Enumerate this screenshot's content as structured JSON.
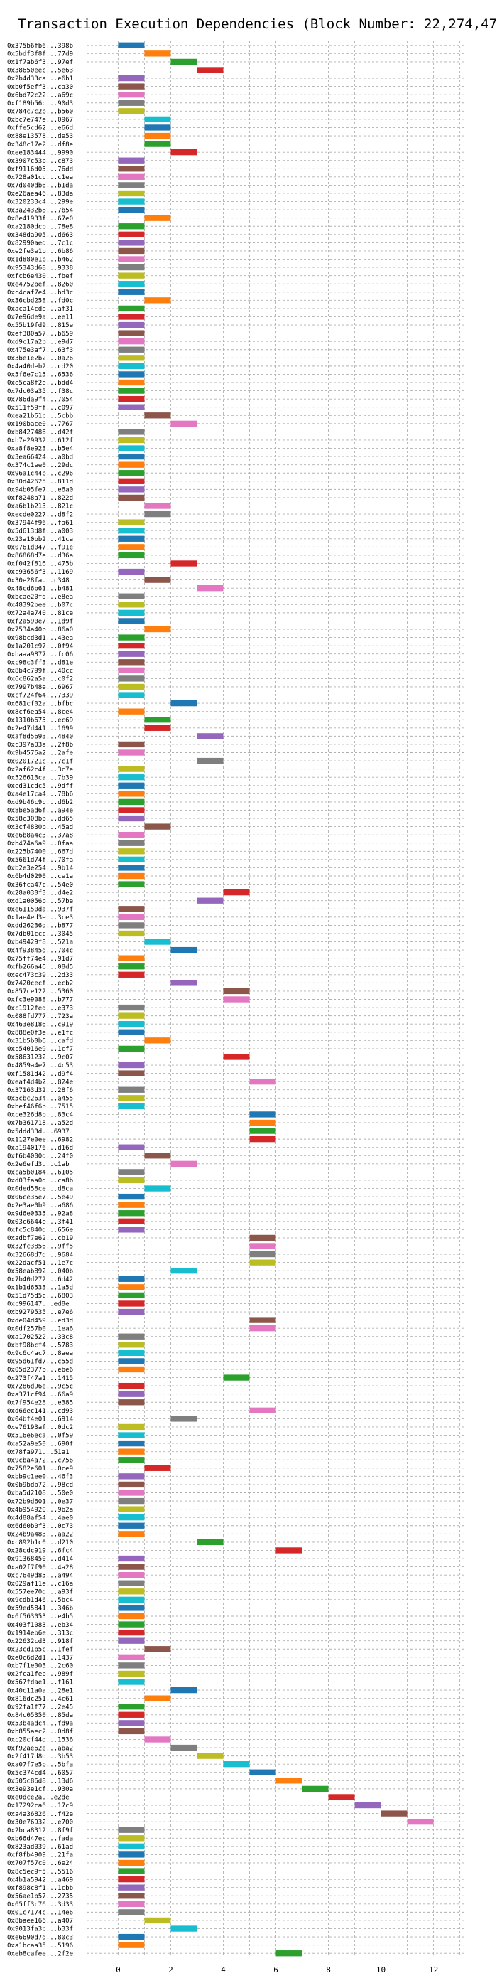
{
  "chart_data": {
    "type": "bar",
    "title": "Transaction Execution Dependencies (Block Number: 22,274,472)",
    "xlabel": "",
    "ylabel": "",
    "xlim": [
      -1.2,
      13.2
    ],
    "xticks": [
      0,
      2,
      4,
      6,
      8,
      10,
      12
    ],
    "grid": true,
    "colors": [
      "#1f77b4",
      "#ff7f0e",
      "#2ca02c",
      "#d62728",
      "#9467bd",
      "#8c564b",
      "#e377c2",
      "#7f7f7f",
      "#bcbd22",
      "#17becf"
    ],
    "transactions": [
      {
        "hash": "0x375b6fb6...398b",
        "start": 0
      },
      {
        "hash": "0x5bdf3f8f...77d9",
        "start": 1
      },
      {
        "hash": "0x1f7ab6f3...97ef",
        "start": 2
      },
      {
        "hash": "0x38650eec...5e63",
        "start": 3
      },
      {
        "hash": "0x2b4d33ca...e6b1",
        "start": 0
      },
      {
        "hash": "0xb0f5eff3...ca30",
        "start": 0
      },
      {
        "hash": "0x6bd72c22...a69c",
        "start": 0
      },
      {
        "hash": "0xf189b56c...90d3",
        "start": 0
      },
      {
        "hash": "0x784c7c2b...b560",
        "start": 0
      },
      {
        "hash": "0xbc7e747e...0967",
        "start": 1
      },
      {
        "hash": "0xffe5cd62...e66d",
        "start": 1
      },
      {
        "hash": "0x88e13578...de53",
        "start": 1
      },
      {
        "hash": "0x348c17e2...df8e",
        "start": 1
      },
      {
        "hash": "0xee183444...9990",
        "start": 2
      },
      {
        "hash": "0x3907c53b...c873",
        "start": 0
      },
      {
        "hash": "0xf9116d05...76dd",
        "start": 0
      },
      {
        "hash": "0x728a01cc...c1ea",
        "start": 0
      },
      {
        "hash": "0x7d040db6...b1da",
        "start": 0
      },
      {
        "hash": "0xe26aea46...83da",
        "start": 0
      },
      {
        "hash": "0x320233c4...299e",
        "start": 0
      },
      {
        "hash": "0x3a2432b8...7b54",
        "start": 0
      },
      {
        "hash": "0x8e41933f...67e0",
        "start": 1
      },
      {
        "hash": "0xa2180dcb...78e8",
        "start": 0
      },
      {
        "hash": "0x348da905...d663",
        "start": 0
      },
      {
        "hash": "0x82990aed...7c1c",
        "start": 0
      },
      {
        "hash": "0xe2fe3e1b...6b86",
        "start": 0
      },
      {
        "hash": "0x1d880e1b...b462",
        "start": 0
      },
      {
        "hash": "0x95343d68...9338",
        "start": 0
      },
      {
        "hash": "0xfcb6e430...fbef",
        "start": 0
      },
      {
        "hash": "0xe4752bef...8260",
        "start": 0
      },
      {
        "hash": "0xc4caf7e4...bd3c",
        "start": 0
      },
      {
        "hash": "0x36cbd258...fd0c",
        "start": 1
      },
      {
        "hash": "0xaca14cde...af31",
        "start": 0
      },
      {
        "hash": "0x7e96de9a...ee11",
        "start": 0
      },
      {
        "hash": "0x55b19fd9...815e",
        "start": 0
      },
      {
        "hash": "0xef380a57...b659",
        "start": 0
      },
      {
        "hash": "0xd9c17a2b...e9d7",
        "start": 0
      },
      {
        "hash": "0x475e3af7...63f3",
        "start": 0
      },
      {
        "hash": "0x3be1e2b2...0a26",
        "start": 0
      },
      {
        "hash": "0x4a40deb2...cd20",
        "start": 0
      },
      {
        "hash": "0x5f6e7c15...6536",
        "start": 0
      },
      {
        "hash": "0xe5ca8f2e...bdd4",
        "start": 0
      },
      {
        "hash": "0x7dc03a35...f38c",
        "start": 0
      },
      {
        "hash": "0x786da9f4...7054",
        "start": 0
      },
      {
        "hash": "0x511f59ff...c097",
        "start": 0
      },
      {
        "hash": "0xea21b61c...5cbb",
        "start": 1
      },
      {
        "hash": "0x190bace0...7767",
        "start": 2
      },
      {
        "hash": "0xb8427486...d42f",
        "start": 0
      },
      {
        "hash": "0xb7e29932...612f",
        "start": 0
      },
      {
        "hash": "0xa8f8e923...b5e4",
        "start": 0
      },
      {
        "hash": "0x3ea66424...a0bd",
        "start": 0
      },
      {
        "hash": "0x374c1ee0...29dc",
        "start": 0
      },
      {
        "hash": "0x96a1c44b...c296",
        "start": 0
      },
      {
        "hash": "0x30d42625...811d",
        "start": 0
      },
      {
        "hash": "0x94b05fe7...e6a0",
        "start": 0
      },
      {
        "hash": "0xf8248a71...822d",
        "start": 0
      },
      {
        "hash": "0xa6b1b213...821c",
        "start": 1
      },
      {
        "hash": "0xecde0227...d8f2",
        "start": 1
      },
      {
        "hash": "0x37944f96...fa61",
        "start": 0
      },
      {
        "hash": "0x5d613d8f...a003",
        "start": 0
      },
      {
        "hash": "0x23a10bb2...41ca",
        "start": 0
      },
      {
        "hash": "0x0761d047...f91e",
        "start": 0
      },
      {
        "hash": "0x86868d7e...d36a",
        "start": 0
      },
      {
        "hash": "0xf042f816...475b",
        "start": 2
      },
      {
        "hash": "0xc93656f3...1169",
        "start": 0
      },
      {
        "hash": "0x30e28fa...c348",
        "start": 1
      },
      {
        "hash": "0x48cd6b61...b481",
        "start": 3
      },
      {
        "hash": "0xbcae20fd...e8ea",
        "start": 0
      },
      {
        "hash": "0x48392bee...b07c",
        "start": 0
      },
      {
        "hash": "0x72a4a740...81ce",
        "start": 0
      },
      {
        "hash": "0xf2a590e7...1d9f",
        "start": 0
      },
      {
        "hash": "0x7534a40b...86a0",
        "start": 1
      },
      {
        "hash": "0x98bcd3d1...43ea",
        "start": 0
      },
      {
        "hash": "0x1a201c97...0f94",
        "start": 0
      },
      {
        "hash": "0xbaaa9877...fc06",
        "start": 0
      },
      {
        "hash": "0xc98c3ff3...d81e",
        "start": 0
      },
      {
        "hash": "0x8b4c799f...40cc",
        "start": 0
      },
      {
        "hash": "0x6c862a5a...c0f2",
        "start": 0
      },
      {
        "hash": "0x7997b48e...6967",
        "start": 0
      },
      {
        "hash": "0xcf724f64...7339",
        "start": 0
      },
      {
        "hash": "0x681cf02a...bfbc",
        "start": 2
      },
      {
        "hash": "0x8cf6ea54...8ce4",
        "start": 0
      },
      {
        "hash": "0x1310b675...ec69",
        "start": 1
      },
      {
        "hash": "0x2e47d441...1699",
        "start": 1
      },
      {
        "hash": "0xaf8d5693...4840",
        "start": 3
      },
      {
        "hash": "0xc397a03a...2f8b",
        "start": 0
      },
      {
        "hash": "0x9b4576a2...2afe",
        "start": 0
      },
      {
        "hash": "0x0201721c...7c1f",
        "start": 3
      },
      {
        "hash": "0x2af62c4f...3c7e",
        "start": 0
      },
      {
        "hash": "0x526613ca...7b39",
        "start": 0
      },
      {
        "hash": "0xed31cdc5...9dff",
        "start": 0
      },
      {
        "hash": "0xa4e17ca4...78b6",
        "start": 0
      },
      {
        "hash": "0xd9b46c9c...d6b2",
        "start": 0
      },
      {
        "hash": "0x8be5ad6f...a94e",
        "start": 0
      },
      {
        "hash": "0x58c308bb...dd65",
        "start": 0
      },
      {
        "hash": "0x3cf4830b...45ad",
        "start": 1
      },
      {
        "hash": "0xe6b8a4c3...37a8",
        "start": 0
      },
      {
        "hash": "0xb474a6a9...0faa",
        "start": 0
      },
      {
        "hash": "0x225b7400...667d",
        "start": 0
      },
      {
        "hash": "0x5661d74f...70fa",
        "start": 0
      },
      {
        "hash": "0xb2e3e254...9b14",
        "start": 0
      },
      {
        "hash": "0x6b4d0290...ce1a",
        "start": 0
      },
      {
        "hash": "0x36fca47c...54e0",
        "start": 0
      },
      {
        "hash": "0x28a030f3...d4e2",
        "start": 4
      },
      {
        "hash": "0xd1a0056b...57be",
        "start": 3
      },
      {
        "hash": "0xe61150da...937f",
        "start": 0
      },
      {
        "hash": "0x1ae4ed3e...3ce3",
        "start": 0
      },
      {
        "hash": "0xdd26236d...b877",
        "start": 0
      },
      {
        "hash": "0x7db01ccc...3045",
        "start": 0
      },
      {
        "hash": "0xb49429f8...521a",
        "start": 1
      },
      {
        "hash": "0x4f93845d...704c",
        "start": 2
      },
      {
        "hash": "0x75ff74e4...91d7",
        "start": 0
      },
      {
        "hash": "0xfb266a46...08d5",
        "start": 0
      },
      {
        "hash": "0xec473c39...2d33",
        "start": 0
      },
      {
        "hash": "0x7420cecf...ecb2",
        "start": 2
      },
      {
        "hash": "0x857ce122...5360",
        "start": 4
      },
      {
        "hash": "0xfc3e9088...b777",
        "start": 4
      },
      {
        "hash": "0xc1912fed...e373",
        "start": 0
      },
      {
        "hash": "0x088fd777...723a",
        "start": 0
      },
      {
        "hash": "0x463e8186...c919",
        "start": 0
      },
      {
        "hash": "0x888e0f3e...e1fc",
        "start": 0
      },
      {
        "hash": "0x31b5b0b6...cafd",
        "start": 1
      },
      {
        "hash": "0xc54016e9...1cf7",
        "start": 0
      },
      {
        "hash": "0x58631232...9c07",
        "start": 4
      },
      {
        "hash": "0x4859a4e7...4c53",
        "start": 0
      },
      {
        "hash": "0xf1581d42...d9f4",
        "start": 0
      },
      {
        "hash": "0xeaf4d4b2...824e",
        "start": 5
      },
      {
        "hash": "0x37163d32...28f6",
        "start": 0
      },
      {
        "hash": "0x5cbc2634...a455",
        "start": 0
      },
      {
        "hash": "0xbef46f6b...7515",
        "start": 0
      },
      {
        "hash": "0xce326d8b...83c4",
        "start": 5
      },
      {
        "hash": "0x7b361718...a52d",
        "start": 5
      },
      {
        "hash": "0x5ddd33d...6937",
        "start": 5
      },
      {
        "hash": "0x1127e0ee...6982",
        "start": 5
      },
      {
        "hash": "0xa1940176...d16d",
        "start": 0
      },
      {
        "hash": "0xf6b4000d...24f0",
        "start": 1
      },
      {
        "hash": "0x2e6efd3...c1ab",
        "start": 2
      },
      {
        "hash": "0xca5b0184...6105",
        "start": 0
      },
      {
        "hash": "0xd03faa0d...ca8b",
        "start": 0
      },
      {
        "hash": "0x0ded58ce...d8ca",
        "start": 1
      },
      {
        "hash": "0x06ce35e7...5e49",
        "start": 0
      },
      {
        "hash": "0x2e3ae0b9...a686",
        "start": 0
      },
      {
        "hash": "0x9d6e0335...92a8",
        "start": 0
      },
      {
        "hash": "0x03c6644e...3f41",
        "start": 0
      },
      {
        "hash": "0xfc5c840d...656e",
        "start": 0
      },
      {
        "hash": "0xadbf7e62...cb19",
        "start": 5
      },
      {
        "hash": "0x32fc3856...9ff5",
        "start": 5
      },
      {
        "hash": "0x32668d7d...9684",
        "start": 5
      },
      {
        "hash": "0x22dacf51...1e7c",
        "start": 5
      },
      {
        "hash": "0x58eab892...040b",
        "start": 2
      },
      {
        "hash": "0x7b40d272...6d42",
        "start": 0
      },
      {
        "hash": "0x1b1d6533...1a5d",
        "start": 0
      },
      {
        "hash": "0x51d75d5c...6803",
        "start": 0
      },
      {
        "hash": "0xc996147...ed8e",
        "start": 0
      },
      {
        "hash": "0xb9279535...e7e6",
        "start": 0
      },
      {
        "hash": "0xde04d459...ed3d",
        "start": 5
      },
      {
        "hash": "0x0df257b0...1ea6",
        "start": 5
      },
      {
        "hash": "0xa1702522...33c8",
        "start": 0
      },
      {
        "hash": "0xbf98bcf4...5783",
        "start": 0
      },
      {
        "hash": "0x9c6c4ac7...8aea",
        "start": 0
      },
      {
        "hash": "0x95d61fd7...c55d",
        "start": 0
      },
      {
        "hash": "0x05d2377b...ebe6",
        "start": 0
      },
      {
        "hash": "0x273f47a1...1415",
        "start": 4
      },
      {
        "hash": "0x7286d96e...9c5c",
        "start": 0
      },
      {
        "hash": "0xa371cf94...66a9",
        "start": 0
      },
      {
        "hash": "0x7f954e28...e385",
        "start": 0
      },
      {
        "hash": "0xd66ec141...cd93",
        "start": 5
      },
      {
        "hash": "0x04bf4e01...6914",
        "start": 2
      },
      {
        "hash": "0xe76193af...0dc2",
        "start": 0
      },
      {
        "hash": "0x516e6eca...0f59",
        "start": 0
      },
      {
        "hash": "0xa52a9e50...690f",
        "start": 0
      },
      {
        "hash": "0x78fa971...51a1",
        "start": 0
      },
      {
        "hash": "0x9cba4a72...c756",
        "start": 0
      },
      {
        "hash": "0x7582e601...0ce9",
        "start": 1
      },
      {
        "hash": "0xbb9c1ee0...46f3",
        "start": 0
      },
      {
        "hash": "0x0b9bdb72...98cd",
        "start": 0
      },
      {
        "hash": "0xba5d2108...50e0",
        "start": 0
      },
      {
        "hash": "0x72b9d601...0e37",
        "start": 0
      },
      {
        "hash": "0x4b954920...9b2a",
        "start": 0
      },
      {
        "hash": "0x4d88af54...4ae0",
        "start": 0
      },
      {
        "hash": "0x6d60b0f3...0c73",
        "start": 0
      },
      {
        "hash": "0x24b9a483...aa22",
        "start": 0
      },
      {
        "hash": "0xc892b1c0...d210",
        "start": 3
      },
      {
        "hash": "0x28cdc919...6fc4",
        "start": 6
      },
      {
        "hash": "0x91368450...d414",
        "start": 0
      },
      {
        "hash": "0xa02f7f90...4a28",
        "start": 0
      },
      {
        "hash": "0xc7649d85...a494",
        "start": 0
      },
      {
        "hash": "0x029af11e...c16a",
        "start": 0
      },
      {
        "hash": "0x557ee70d...a93f",
        "start": 0
      },
      {
        "hash": "0x9cdb1d46...5bc4",
        "start": 0
      },
      {
        "hash": "0x59ed5841...346b",
        "start": 0
      },
      {
        "hash": "0x6f563053...e4b5",
        "start": 0
      },
      {
        "hash": "0x403f1083...eb34",
        "start": 0
      },
      {
        "hash": "0x1914eb6e...313c",
        "start": 0
      },
      {
        "hash": "0x22632cd3...918f",
        "start": 0
      },
      {
        "hash": "0x23cd1b5c...1fef",
        "start": 1
      },
      {
        "hash": "0xe0c6d2d1...1437",
        "start": 0
      },
      {
        "hash": "0xb7f1e003...2c60",
        "start": 0
      },
      {
        "hash": "0x2fca1feb...989f",
        "start": 0
      },
      {
        "hash": "0x567fdae1...f161",
        "start": 0
      },
      {
        "hash": "0x40c11a0a...28e1",
        "start": 2
      },
      {
        "hash": "0x816dc251...4c61",
        "start": 1
      },
      {
        "hash": "0x92fa1f77...2e45",
        "start": 0
      },
      {
        "hash": "0x84c05350...85da",
        "start": 0
      },
      {
        "hash": "0x53b4adc4...fd9a",
        "start": 0
      },
      {
        "hash": "0xb855aec2...0d8f",
        "start": 0
      },
      {
        "hash": "0xc20cf44d...1536",
        "start": 1
      },
      {
        "hash": "0xf92ae62e...aba2",
        "start": 2
      },
      {
        "hash": "0x2f417d8d...3b53",
        "start": 3
      },
      {
        "hash": "0xa07f7e5b...5bfa",
        "start": 4
      },
      {
        "hash": "0x5c374cd4...6057",
        "start": 5
      },
      {
        "hash": "0x505c86d8...13d6",
        "start": 6
      },
      {
        "hash": "0x3e93e1cf...930a",
        "start": 7
      },
      {
        "hash": "0xe0dce2a...e2de",
        "start": 8
      },
      {
        "hash": "0x17292ca6...17c9",
        "start": 9
      },
      {
        "hash": "0xa4a36826...f42e",
        "start": 10
      },
      {
        "hash": "0x30e76932...e700",
        "start": 11
      },
      {
        "hash": "0x2bca8312...8f9f",
        "start": 0
      },
      {
        "hash": "0xb66d47ec...fada",
        "start": 0
      },
      {
        "hash": "0x823ad039...61ad",
        "start": 0
      },
      {
        "hash": "0xf8fb4909...21fa",
        "start": 0
      },
      {
        "hash": "0x707f57c0...6e24",
        "start": 0
      },
      {
        "hash": "0x8c5ec9f5...5516",
        "start": 0
      },
      {
        "hash": "0x4b1a5942...a469",
        "start": 0
      },
      {
        "hash": "0xf898c8f1...1cbb",
        "start": 0
      },
      {
        "hash": "0x56ae1b57...2735",
        "start": 0
      },
      {
        "hash": "0x65ff3c76...3d33",
        "start": 0
      },
      {
        "hash": "0x01c7174c...14e6",
        "start": 0
      },
      {
        "hash": "0x8baee166...a407",
        "start": 1
      },
      {
        "hash": "0x9013fa3c...b33f",
        "start": 2
      },
      {
        "hash": "0xe6690d7d...80c3",
        "start": 0
      },
      {
        "hash": "0xa1bcaa35...5196",
        "start": 0
      },
      {
        "hash": "0xeb8cafee...2f2e",
        "start": 6
      }
    ]
  }
}
